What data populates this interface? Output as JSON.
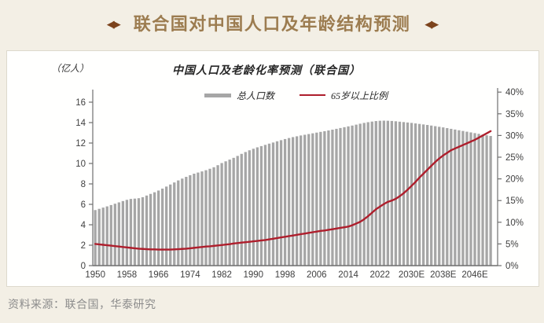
{
  "header": {
    "decoration": "◀▶",
    "title": "联合国对中国人口及年龄结构预测",
    "title_color": "#9c7c50",
    "decoration_color": "#7c431c"
  },
  "footer": {
    "source_text": "资料来源：联合国，华泰研究"
  },
  "colors": {
    "page_background": "#f3efe5",
    "panel_background": "#fffffe",
    "bar_gray": "#a6a6a6",
    "line_red": "#ae1e2c",
    "axis_gray": "#6f6f6f",
    "tick_text": "#404040"
  },
  "chart_data": {
    "type": "bar",
    "title": "中国人口及老龄化率预测（联合国）",
    "start_year": 1950,
    "end_year": 2050,
    "left_axis": {
      "unit_label": "（亿人）",
      "min": 0,
      "max": 16,
      "step": 2,
      "tick_labels": [
        "0",
        "2",
        "4",
        "6",
        "8",
        "10",
        "12",
        "14",
        "16"
      ]
    },
    "right_axis": {
      "min": 0,
      "max": 40,
      "step": 5,
      "tick_labels": [
        "0%",
        "5%",
        "10%",
        "15%",
        "20%",
        "25%",
        "30%",
        "35%",
        "40%"
      ]
    },
    "x_ticks": [
      {
        "year": 1950,
        "label": "1950"
      },
      {
        "year": 1958,
        "label": "1958"
      },
      {
        "year": 1966,
        "label": "1966"
      },
      {
        "year": 1974,
        "label": "1974"
      },
      {
        "year": 1982,
        "label": "1982"
      },
      {
        "year": 1990,
        "label": "1990"
      },
      {
        "year": 1998,
        "label": "1998"
      },
      {
        "year": 2006,
        "label": "2006"
      },
      {
        "year": 2014,
        "label": "2014"
      },
      {
        "year": 2022,
        "label": "2022"
      },
      {
        "year": 2030,
        "label": "2030E"
      },
      {
        "year": 2038,
        "label": "2038E"
      },
      {
        "year": 2046,
        "label": "2046E"
      }
    ],
    "legend_position": "top-center",
    "grid": false,
    "series": [
      {
        "name": "总人口数",
        "type": "bar",
        "axis": "left",
        "color": "#a6a6a6",
        "values": [
          5.44,
          5.56,
          5.68,
          5.8,
          5.93,
          6.06,
          6.19,
          6.32,
          6.44,
          6.53,
          6.56,
          6.6,
          6.7,
          6.86,
          7.02,
          7.18,
          7.35,
          7.54,
          7.74,
          7.94,
          8.14,
          8.34,
          8.52,
          8.69,
          8.85,
          9.0,
          9.11,
          9.22,
          9.34,
          9.48,
          9.63,
          9.83,
          10.04,
          10.21,
          10.38,
          10.55,
          10.74,
          10.94,
          11.12,
          11.29,
          11.44,
          11.58,
          11.7,
          11.82,
          11.94,
          12.05,
          12.17,
          12.28,
          12.39,
          12.49,
          12.58,
          12.66,
          12.74,
          12.81,
          12.88,
          12.95,
          13.02,
          13.09,
          13.16,
          13.23,
          13.31,
          13.39,
          13.47,
          13.55,
          13.63,
          13.71,
          13.8,
          13.89,
          13.97,
          14.04,
          14.1,
          14.15,
          14.18,
          14.19,
          14.18,
          14.16,
          14.13,
          14.09,
          14.05,
          14.01,
          13.97,
          13.92,
          13.87,
          13.82,
          13.77,
          13.71,
          13.65,
          13.59,
          13.53,
          13.46,
          13.39,
          13.32,
          13.25,
          13.18,
          13.11,
          13.04,
          12.97,
          12.9,
          12.83,
          12.76,
          12.69
        ]
      },
      {
        "name": "65岁以上比例",
        "type": "line",
        "axis": "right",
        "color": "#ae1e2c",
        "values": [
          5.0,
          4.9,
          4.8,
          4.7,
          4.6,
          4.5,
          4.4,
          4.3,
          4.2,
          4.1,
          4.0,
          3.9,
          3.85,
          3.8,
          3.75,
          3.75,
          3.7,
          3.7,
          3.7,
          3.7,
          3.75,
          3.8,
          3.85,
          3.9,
          4.0,
          4.1,
          4.2,
          4.3,
          4.4,
          4.45,
          4.55,
          4.65,
          4.75,
          4.85,
          4.95,
          5.1,
          5.2,
          5.3,
          5.4,
          5.5,
          5.6,
          5.7,
          5.8,
          5.9,
          6.05,
          6.2,
          6.35,
          6.5,
          6.65,
          6.8,
          6.95,
          7.1,
          7.25,
          7.4,
          7.55,
          7.7,
          7.85,
          8.0,
          8.1,
          8.25,
          8.4,
          8.55,
          8.7,
          8.85,
          9.0,
          9.3,
          9.7,
          10.1,
          10.7,
          11.4,
          12.2,
          13.0,
          13.6,
          14.2,
          14.7,
          15.0,
          15.4,
          16.0,
          16.7,
          17.5,
          18.4,
          19.3,
          20.3,
          21.2,
          22.1,
          23.0,
          23.9,
          24.7,
          25.4,
          26.0,
          26.6,
          27.0,
          27.4,
          27.8,
          28.2,
          28.6,
          29.0,
          29.5,
          30.0,
          30.5,
          31.0
        ]
      }
    ]
  }
}
